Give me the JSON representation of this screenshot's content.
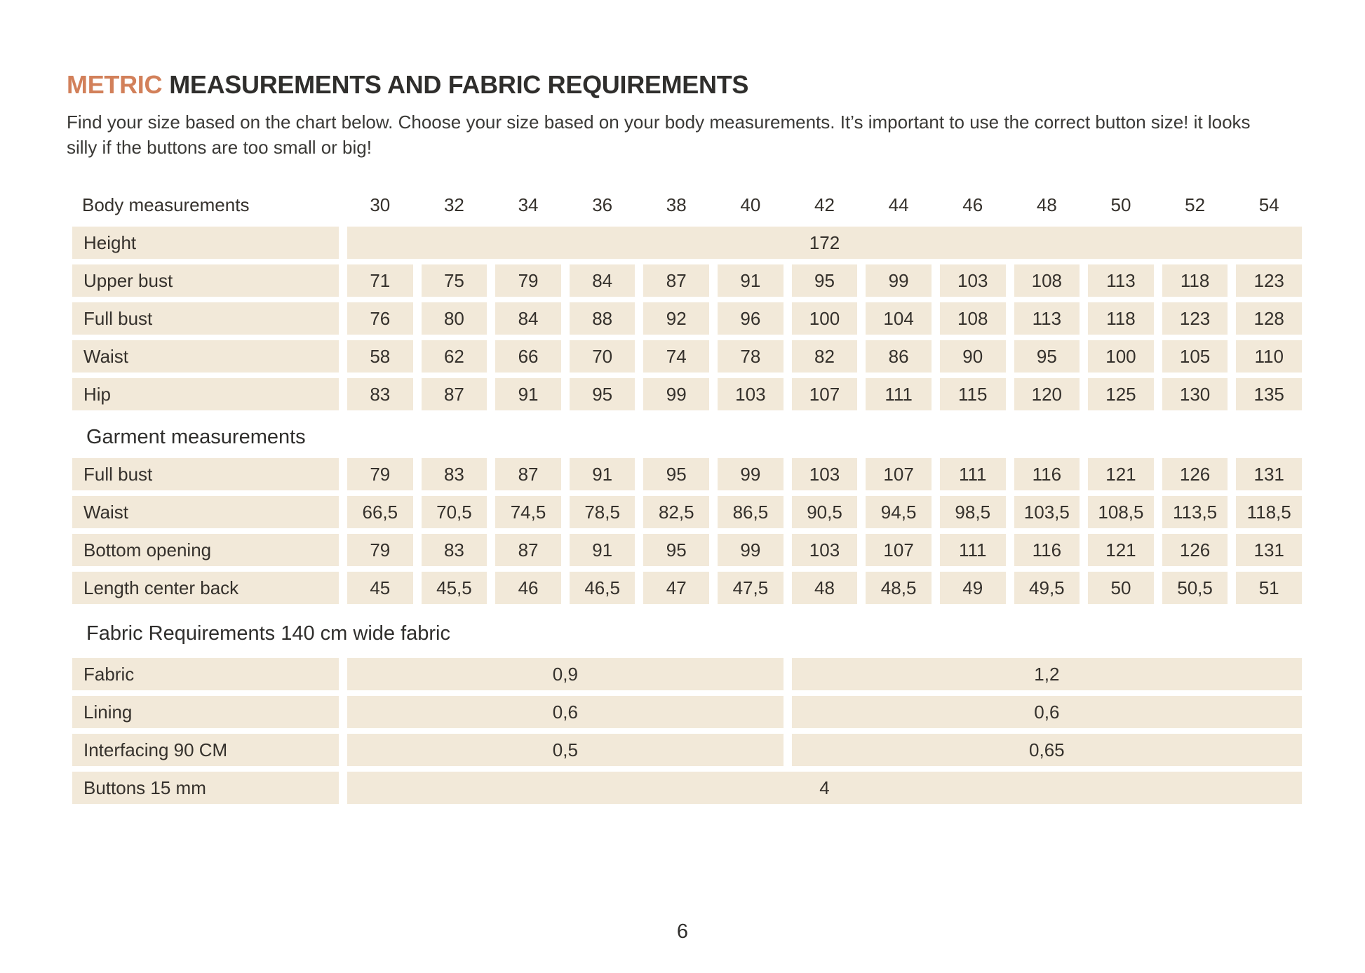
{
  "header": {
    "title_accent": "METRIC",
    "title_rest": "MEASUREMENTS AND FABRIC REQUIREMENTS",
    "intro": "Find your size based on the chart below. Choose your size based on your body measurements.  It’s important to use the correct button size! it looks silly if the buttons are too small or big!"
  },
  "colors": {
    "accent": "#d2805a",
    "cell_bg": "#f2e9d9",
    "text": "#35312c"
  },
  "table": {
    "body_section_label": "Body measurements",
    "sizes": [
      "30",
      "32",
      "34",
      "36",
      "38",
      "40",
      "42",
      "44",
      "46",
      "48",
      "50",
      "52",
      "54"
    ],
    "body_rows": [
      {
        "label": "Height",
        "type": "full",
        "value": "172"
      },
      {
        "label": "Upper bust",
        "type": "cells",
        "values": [
          "71",
          "75",
          "79",
          "84",
          "87",
          "91",
          "95",
          "99",
          "103",
          "108",
          "113",
          "118",
          "123"
        ]
      },
      {
        "label": "Full bust",
        "type": "cells",
        "values": [
          "76",
          "80",
          "84",
          "88",
          "92",
          "96",
          "100",
          "104",
          "108",
          "113",
          "118",
          "123",
          "128"
        ]
      },
      {
        "label": "Waist",
        "type": "cells",
        "values": [
          "58",
          "62",
          "66",
          "70",
          "74",
          "78",
          "82",
          "86",
          "90",
          "95",
          "100",
          "105",
          "110"
        ]
      },
      {
        "label": "Hip",
        "type": "cells",
        "values": [
          "83",
          "87",
          "91",
          "95",
          "99",
          "103",
          "107",
          "111",
          "115",
          "120",
          "125",
          "130",
          "135"
        ]
      }
    ],
    "garment_section_label": "Garment measurements",
    "garment_rows": [
      {
        "label": "Full bust",
        "type": "cells",
        "values": [
          "79",
          "83",
          "87",
          "91",
          "95",
          "99",
          "103",
          "107",
          "111",
          "116",
          "121",
          "126",
          "131"
        ]
      },
      {
        "label": "Waist",
        "type": "cells",
        "values": [
          "66,5",
          "70,5",
          "74,5",
          "78,5",
          "82,5",
          "86,5",
          "90,5",
          "94,5",
          "98,5",
          "103,5",
          "108,5",
          "113,5",
          "118,5"
        ]
      },
      {
        "label": "Bottom opening",
        "type": "cells",
        "values": [
          "79",
          "83",
          "87",
          "91",
          "95",
          "99",
          "103",
          "107",
          "111",
          "116",
          "121",
          "126",
          "131"
        ]
      },
      {
        "label": "Length center back",
        "type": "cells",
        "values": [
          "45",
          "45,5",
          "46",
          "46,5",
          "47",
          "47,5",
          "48",
          "48,5",
          "49",
          "49,5",
          "50",
          "50,5",
          "51"
        ]
      }
    ],
    "fabric_section_label": "Fabric Requirements 140 cm wide fabric",
    "fabric_rows": [
      {
        "label": "Fabric",
        "type": "split",
        "left": "0,9",
        "right": "1,2"
      },
      {
        "label": "Lining",
        "type": "split",
        "left": "0,6",
        "right": "0,6"
      },
      {
        "label": "Interfacing  90 CM",
        "type": "split",
        "left": "0,5",
        "right": "0,65"
      },
      {
        "label": "Buttons 15 mm",
        "type": "full",
        "value": "4"
      }
    ]
  },
  "footer": {
    "page_number": "6"
  }
}
